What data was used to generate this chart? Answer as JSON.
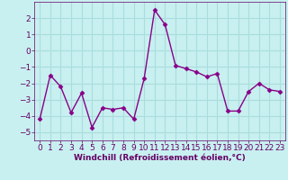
{
  "x": [
    0,
    1,
    2,
    3,
    4,
    5,
    6,
    7,
    8,
    9,
    10,
    11,
    12,
    13,
    14,
    15,
    16,
    17,
    18,
    19,
    20,
    21,
    22,
    23
  ],
  "y": [
    -4.2,
    -1.5,
    -2.2,
    -3.8,
    -2.6,
    -4.7,
    -3.5,
    -3.6,
    -3.5,
    -4.2,
    -1.7,
    2.5,
    1.6,
    -0.9,
    -1.1,
    -1.3,
    -1.6,
    -1.4,
    -3.7,
    -3.7,
    -2.5,
    -2.0,
    -2.4,
    -2.5
  ],
  "line_color": "#880088",
  "marker": "D",
  "marker_size": 2.5,
  "bg_color": "#c8f0f0",
  "grid_color": "#aadddd",
  "xlabel": "Windchill (Refroidissement éolien,°C)",
  "xlabel_color": "#660066",
  "tick_color": "#660066",
  "ylim": [
    -5.5,
    3.0
  ],
  "yticks": [
    -5,
    -4,
    -3,
    -2,
    -1,
    0,
    1,
    2
  ],
  "xlim": [
    -0.5,
    23.5
  ],
  "xticks": [
    0,
    1,
    2,
    3,
    4,
    5,
    6,
    7,
    8,
    9,
    10,
    11,
    12,
    13,
    14,
    15,
    16,
    17,
    18,
    19,
    20,
    21,
    22,
    23
  ],
  "line_width": 1.0,
  "font_size": 6.5,
  "xlabel_fontsize": 6.5
}
